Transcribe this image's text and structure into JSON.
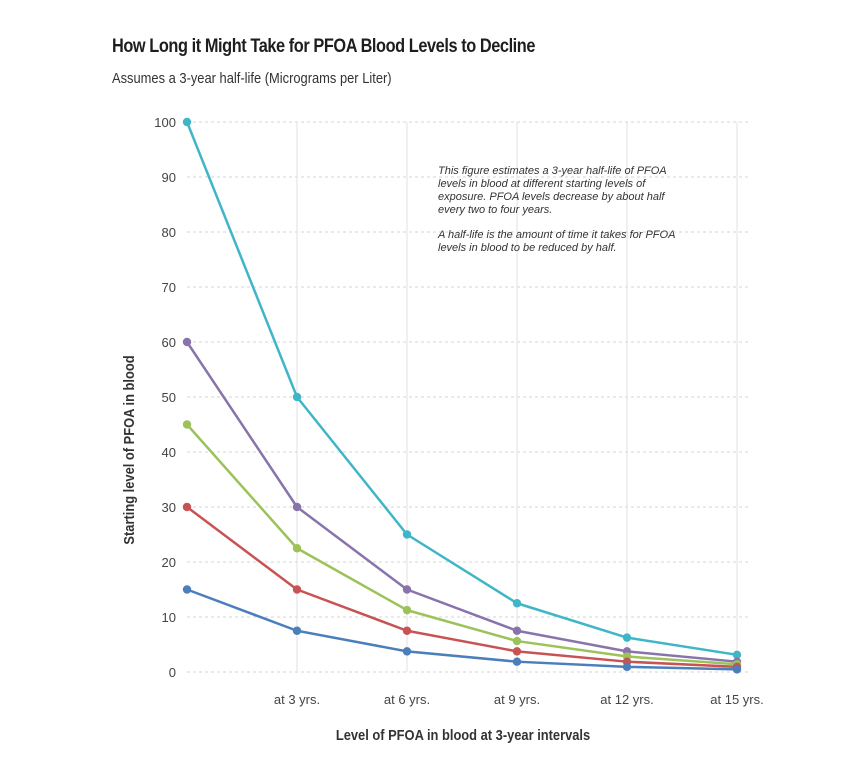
{
  "title": "How Long it Might Take for PFOA Blood Levels to Decline",
  "subtitle": "Assumes a 3-year half-life  (Micrograms per Liter)",
  "annotation": {
    "p1": "This figure estimates a 3-year half-life of PFOA levels in blood at different starting levels of exposure. PFOA levels decrease by about half every two to four years.",
    "p2": "A half-life is the amount of time it takes for PFOA levels in blood to be reduced by half."
  },
  "chart_data": {
    "type": "line",
    "title": "How Long it Might Take for PFOA Blood Levels to Decline",
    "subtitle": "Assumes a 3-year half-life  (Micrograms per Liter)",
    "xlabel": "Level of PFOA in blood at 3-year intervals",
    "ylabel": "Starting level of PFOA in blood",
    "x": [
      0,
      3,
      6,
      9,
      12,
      15
    ],
    "x_tick_labels": [
      "",
      "at 3 yrs.",
      "at 6 yrs.",
      "at 9 yrs.",
      "at 12 yrs.",
      "at 15 yrs."
    ],
    "ylim": [
      0,
      100
    ],
    "y_ticks": [
      0,
      10,
      20,
      30,
      40,
      50,
      60,
      70,
      80,
      90,
      100
    ],
    "grid": true,
    "series": [
      {
        "values": [
          100,
          50,
          25,
          12.5,
          6.25,
          3.125
        ],
        "color": "#3fb6c8"
      },
      {
        "values": [
          60,
          30,
          15,
          7.5,
          3.75,
          1.875
        ],
        "color": "#8874ab"
      },
      {
        "values": [
          45,
          22.5,
          11.25,
          5.625,
          2.8125,
          1.40625
        ],
        "color": "#9cc25a"
      },
      {
        "values": [
          30,
          15,
          7.5,
          3.75,
          1.875,
          0.9375
        ],
        "color": "#c85354"
      },
      {
        "values": [
          15,
          7.5,
          3.75,
          1.875,
          0.9375,
          0.46875
        ],
        "color": "#4a7fbb"
      }
    ]
  }
}
